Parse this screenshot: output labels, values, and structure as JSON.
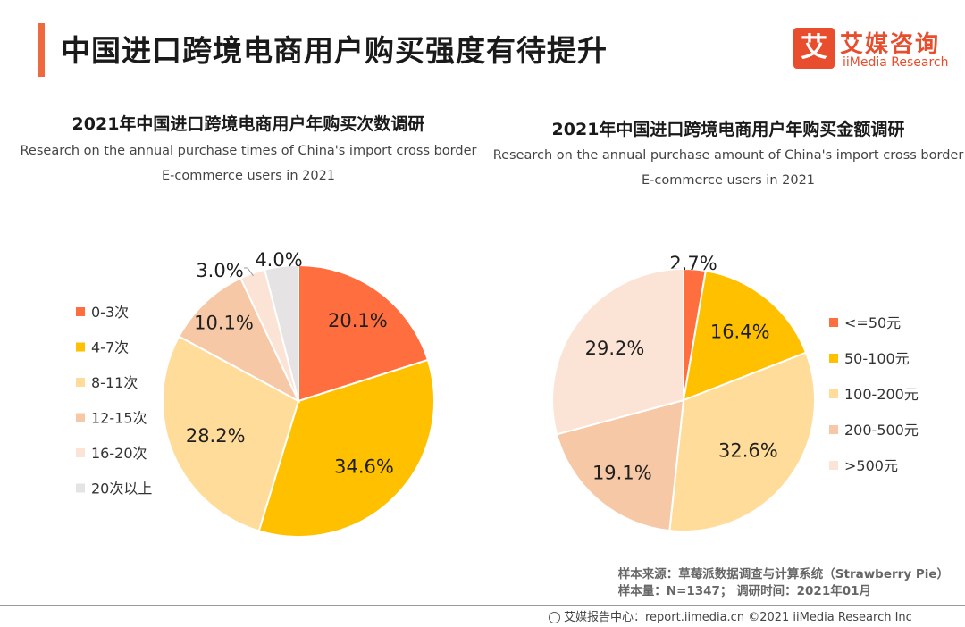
{
  "header": {
    "title": "中国进口跨境电商用户购买强度有待提升",
    "logo_cn": "艾媒咨询",
    "logo_en": "iiMedia Research",
    "logo_mark": "艾"
  },
  "colors": {
    "accent": "#ee6a3e",
    "c1": "#ff6e3f",
    "c2": "#ffc000",
    "c3": "#ffdc9a",
    "c4": "#f6c8a6",
    "c5": "#fbe4d5",
    "c6": "#e5e3e4"
  },
  "chart_data": [
    {
      "type": "pie",
      "title": "2021年中国进口跨境电商用户年购买次数调研",
      "subtitle_line1": "Research on the annual purchase times of China's import cross border",
      "subtitle_line2": "E-commerce users in 2021",
      "categories": [
        "0-3次",
        "4-7次",
        "8-11次",
        "12-15次",
        "16-20次",
        "20次以上"
      ],
      "values": [
        20.1,
        34.6,
        28.2,
        10.1,
        3.0,
        4.0
      ],
      "labels": [
        "20.1%",
        "34.6%",
        "28.2%",
        "10.1%",
        "3.0%",
        "4.0%"
      ],
      "legend_position": "left"
    },
    {
      "type": "pie",
      "title": "2021年中国进口跨境电商用户年购买金额调研",
      "subtitle_line1": "Research on the annual purchase amount of China's import cross border",
      "subtitle_line2": "E-commerce users in 2021",
      "categories": [
        "<=50元",
        "50-100元",
        "100-200元",
        "200-500元",
        ">500元"
      ],
      "values": [
        2.7,
        16.4,
        32.6,
        19.1,
        29.2
      ],
      "labels": [
        "2.7%",
        "16.4%",
        "32.6%",
        "19.1%",
        "29.2%"
      ],
      "legend_position": "right"
    }
  ],
  "source": {
    "line1": "样本来源：草莓派数据调查与计算系统（Strawberry Pie）",
    "line2": "样本量：N=1347；  调研时间：2021年01月"
  },
  "footer": {
    "text": "艾媒报告中心：report.iimedia.cn  ©2021  iiMedia Research Inc"
  }
}
